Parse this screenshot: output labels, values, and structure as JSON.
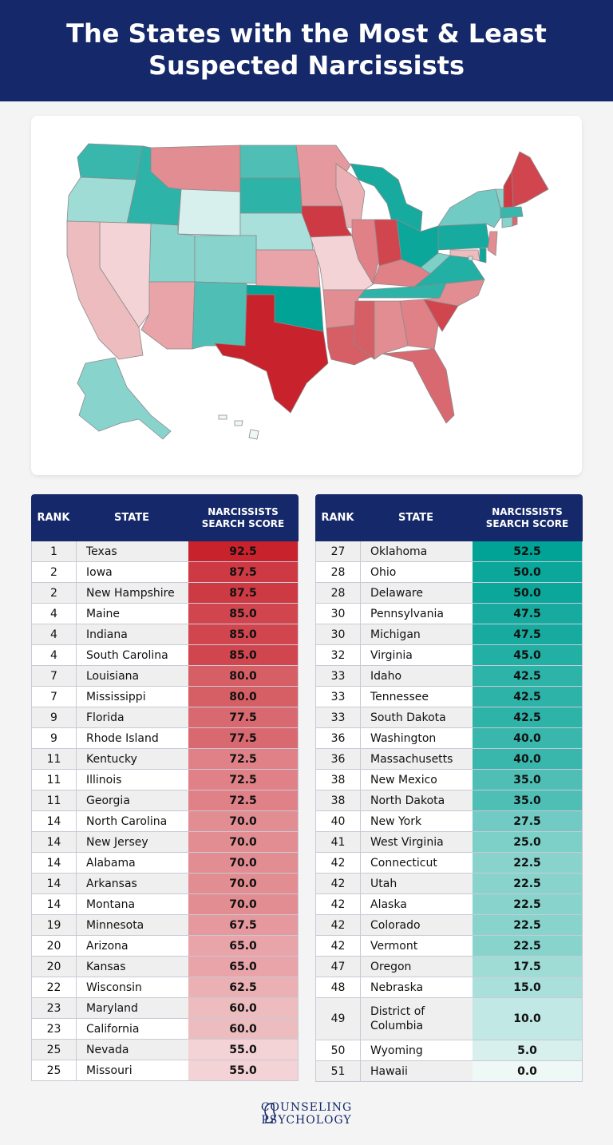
{
  "title_line1": "The States with the Most & Least",
  "title_line2": "Suspected Narcissists",
  "table": {
    "col_rank": "RANK",
    "col_state": "STATE",
    "col_score_line1": "NARCISSISTS",
    "col_score_line2": "SEARCH SCORE"
  },
  "chart_data": {
    "type": "table",
    "columns": [
      "RANK",
      "STATE",
      "NARCISSISTS SEARCH SCORE"
    ],
    "rows": [
      {
        "rank": "1",
        "state": "Texas",
        "score": "92.5"
      },
      {
        "rank": "2",
        "state": "Iowa",
        "score": "87.5"
      },
      {
        "rank": "2",
        "state": "New Hampshire",
        "score": "87.5"
      },
      {
        "rank": "4",
        "state": "Maine",
        "score": "85.0"
      },
      {
        "rank": "4",
        "state": "Indiana",
        "score": "85.0"
      },
      {
        "rank": "4",
        "state": "South Carolina",
        "score": "85.0"
      },
      {
        "rank": "7",
        "state": "Louisiana",
        "score": "80.0"
      },
      {
        "rank": "7",
        "state": "Mississippi",
        "score": "80.0"
      },
      {
        "rank": "9",
        "state": "Florida",
        "score": "77.5"
      },
      {
        "rank": "9",
        "state": "Rhode Island",
        "score": "77.5"
      },
      {
        "rank": "11",
        "state": "Kentucky",
        "score": "72.5"
      },
      {
        "rank": "11",
        "state": "Illinois",
        "score": "72.5"
      },
      {
        "rank": "11",
        "state": "Georgia",
        "score": "72.5"
      },
      {
        "rank": "14",
        "state": "North Carolina",
        "score": "70.0"
      },
      {
        "rank": "14",
        "state": "New Jersey",
        "score": "70.0"
      },
      {
        "rank": "14",
        "state": "Alabama",
        "score": "70.0"
      },
      {
        "rank": "14",
        "state": "Arkansas",
        "score": "70.0"
      },
      {
        "rank": "14",
        "state": "Montana",
        "score": "70.0"
      },
      {
        "rank": "19",
        "state": "Minnesota",
        "score": "67.5"
      },
      {
        "rank": "20",
        "state": "Arizona",
        "score": "65.0"
      },
      {
        "rank": "20",
        "state": "Kansas",
        "score": "65.0"
      },
      {
        "rank": "22",
        "state": "Wisconsin",
        "score": "62.5"
      },
      {
        "rank": "23",
        "state": "Maryland",
        "score": "60.0"
      },
      {
        "rank": "23",
        "state": "California",
        "score": "60.0"
      },
      {
        "rank": "25",
        "state": "Nevada",
        "score": "55.0"
      },
      {
        "rank": "25",
        "state": "Missouri",
        "score": "55.0"
      },
      {
        "rank": "27",
        "state": "Oklahoma",
        "score": "52.5"
      },
      {
        "rank": "28",
        "state": "Ohio",
        "score": "50.0"
      },
      {
        "rank": "28",
        "state": "Delaware",
        "score": "50.0"
      },
      {
        "rank": "30",
        "state": "Pennsylvania",
        "score": "47.5"
      },
      {
        "rank": "30",
        "state": "Michigan",
        "score": "47.5"
      },
      {
        "rank": "32",
        "state": "Virginia",
        "score": "45.0"
      },
      {
        "rank": "33",
        "state": "Idaho",
        "score": "42.5"
      },
      {
        "rank": "33",
        "state": "Tennessee",
        "score": "42.5"
      },
      {
        "rank": "33",
        "state": "South Dakota",
        "score": "42.5"
      },
      {
        "rank": "36",
        "state": "Washington",
        "score": "40.0"
      },
      {
        "rank": "36",
        "state": "Massachusetts",
        "score": "40.0"
      },
      {
        "rank": "38",
        "state": "New Mexico",
        "score": "35.0"
      },
      {
        "rank": "38",
        "state": "North Dakota",
        "score": "35.0"
      },
      {
        "rank": "40",
        "state": "New York",
        "score": "27.5"
      },
      {
        "rank": "41",
        "state": "West Virginia",
        "score": "25.0"
      },
      {
        "rank": "42",
        "state": "Connecticut",
        "score": "22.5"
      },
      {
        "rank": "42",
        "state": "Utah",
        "score": "22.5"
      },
      {
        "rank": "42",
        "state": "Alaska",
        "score": "22.5"
      },
      {
        "rank": "42",
        "state": "Colorado",
        "score": "22.5"
      },
      {
        "rank": "42",
        "state": "Vermont",
        "score": "22.5"
      },
      {
        "rank": "47",
        "state": "Oregon",
        "score": "17.5"
      },
      {
        "rank": "48",
        "state": "Nebraska",
        "score": "15.0"
      },
      {
        "rank": "49",
        "state": "District of Columbia",
        "score": "10.0"
      },
      {
        "rank": "50",
        "state": "Wyoming",
        "score": "5.0"
      },
      {
        "rank": "51",
        "state": "Hawaii",
        "score": "0.0"
      }
    ]
  },
  "colors": {
    "header_bg": "#14286a",
    "red_high": "#c8232c",
    "red_low": "#f3d3d6",
    "teal_high": "#00a396",
    "teal_low": "#eef8f6"
  },
  "logo": {
    "line1": "COUNSELING",
    "line2": "PSYCHOLOGY",
    "icon": "head-profile-icon"
  }
}
